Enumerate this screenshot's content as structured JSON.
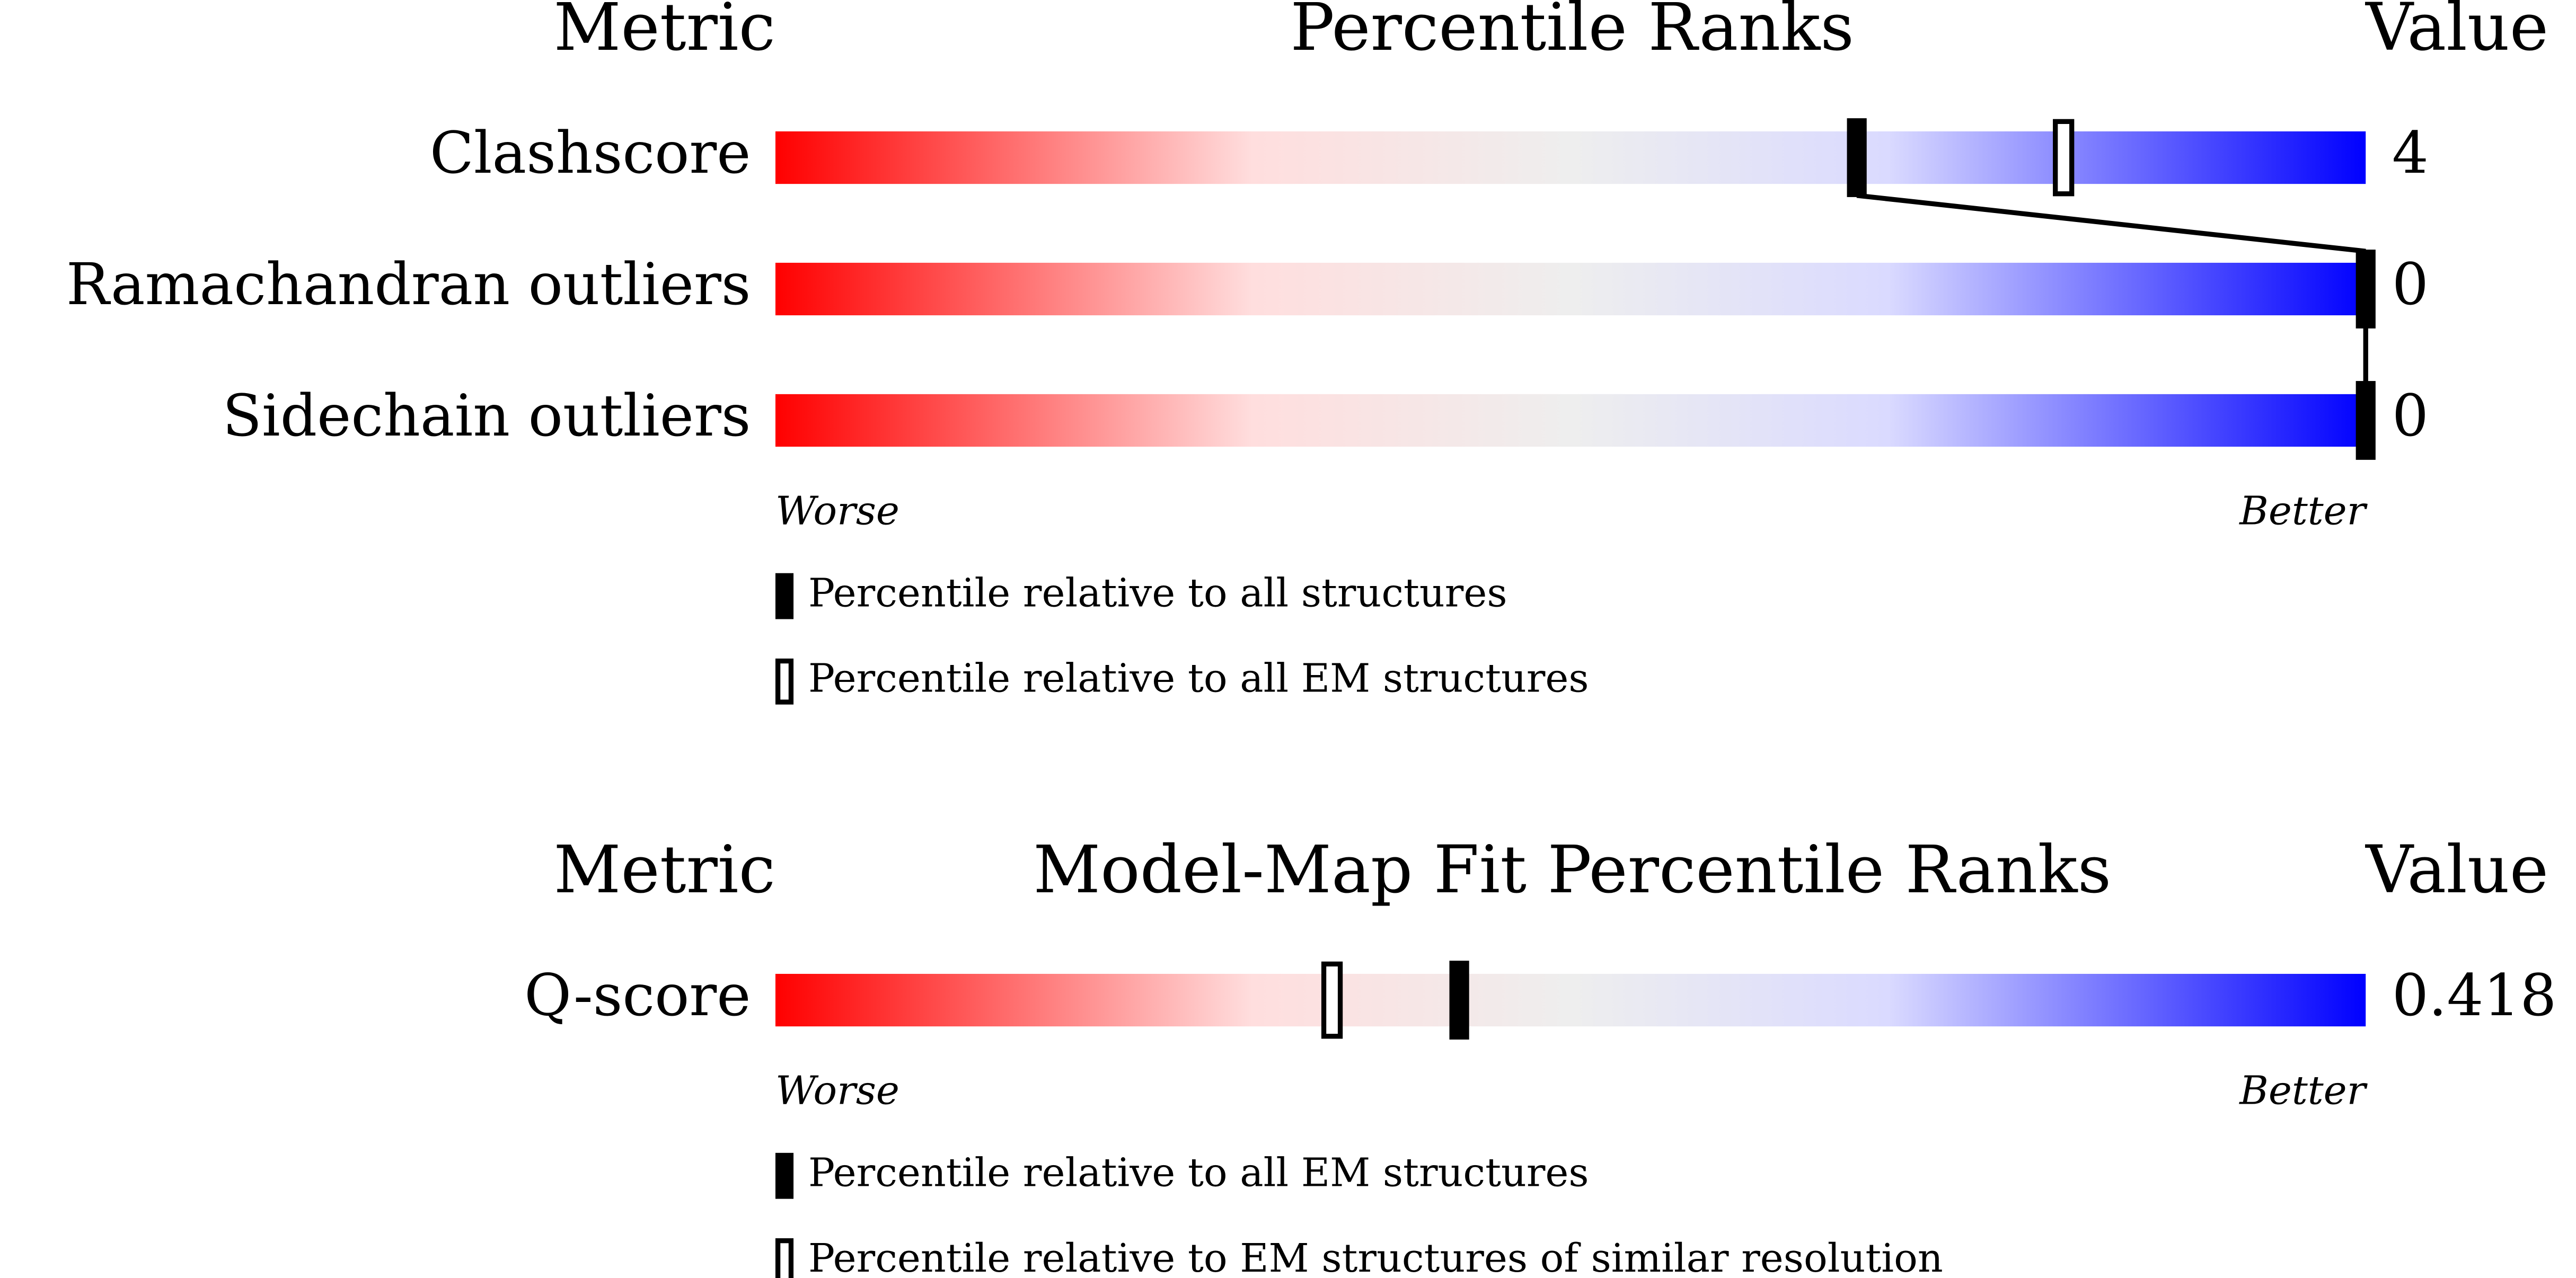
{
  "chart_data": [
    {
      "type": "percentile-slider",
      "headers": {
        "metric": "Metric",
        "title": "Percentile Ranks",
        "value": "Value"
      },
      "xlim": [
        0,
        100
      ],
      "rows": [
        {
          "name": "Clashscore",
          "value": 4,
          "filled": 68,
          "hollow": 81
        },
        {
          "name": "Ramachandran outliers",
          "value": 0,
          "filled": 100
        },
        {
          "name": "Sidechain outliers",
          "value": 0,
          "filled": 100
        }
      ],
      "scale_labels": {
        "worse": "Worse",
        "better": "Better"
      },
      "legend": {
        "filled": "Percentile relative to all structures",
        "hollow": "Percentile relative to all EM structures"
      }
    },
    {
      "type": "percentile-slider",
      "headers": {
        "metric": "Metric",
        "title": "Model-Map Fit Percentile Ranks",
        "value": "Value"
      },
      "xlim": [
        0,
        100
      ],
      "rows": [
        {
          "name": "Q-score",
          "value": 0.418,
          "filled": 43,
          "hollow": 35
        }
      ],
      "scale_labels": {
        "worse": "Worse",
        "better": "Better"
      },
      "legend": {
        "filled": "Percentile relative to all EM structures",
        "hollow": "Percentile relative to EM structures of similar resolution"
      }
    }
  ]
}
